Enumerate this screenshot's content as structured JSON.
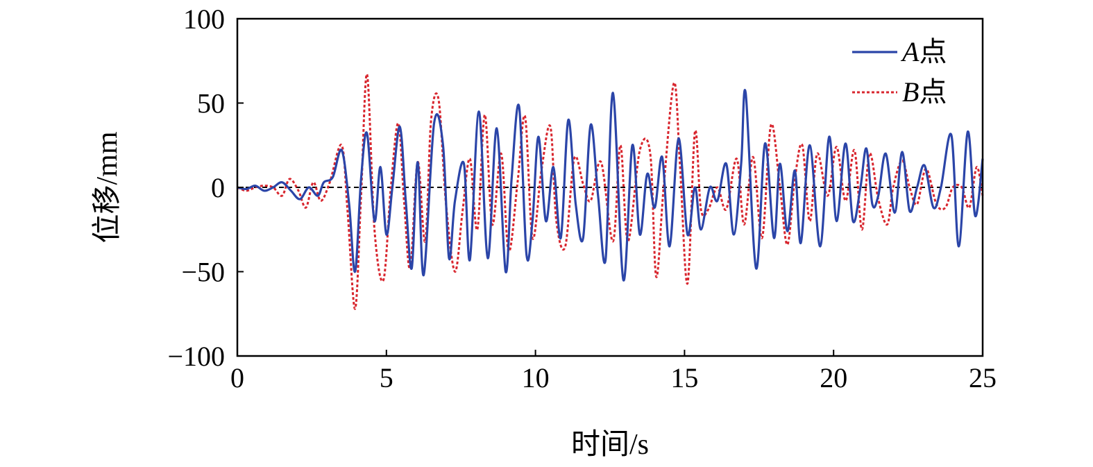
{
  "chart_data": {
    "type": "line",
    "title": "",
    "xlabel": "时间/s",
    "ylabel": "位移/mm",
    "xlim": [
      0,
      25
    ],
    "ylim": [
      -100,
      100
    ],
    "xticks": [
      0,
      5,
      10,
      15,
      20,
      25
    ],
    "xtick_labels": [
      "0",
      "5",
      "10",
      "15",
      "20",
      "25"
    ],
    "yticks": [
      -100,
      -50,
      0,
      50,
      100
    ],
    "ytick_labels": [
      "−100",
      "−50",
      "0",
      "50",
      "100"
    ],
    "grid": false,
    "legend_position": "top-right",
    "zero_line": {
      "y": 0,
      "color": "#000000",
      "style": "dashed"
    },
    "series": [
      {
        "name": "A点",
        "name_letter": "A",
        "name_suffix": "点",
        "color": "#2b45a8",
        "style": "solid",
        "x": [
          0,
          0.3,
          0.6,
          0.9,
          1.2,
          1.5,
          1.8,
          2.1,
          2.4,
          2.7,
          2.9,
          3.2,
          3.5,
          3.75,
          3.95,
          4.15,
          4.35,
          4.6,
          4.8,
          5.0,
          5.2,
          5.45,
          5.65,
          5.85,
          6.05,
          6.25,
          6.6,
          6.9,
          7.1,
          7.3,
          7.6,
          7.8,
          8.1,
          8.4,
          8.7,
          9.0,
          9.2,
          9.45,
          9.7,
          9.9,
          10.1,
          10.35,
          10.6,
          10.85,
          11.1,
          11.35,
          11.6,
          11.85,
          12.1,
          12.35,
          12.6,
          12.95,
          13.25,
          13.5,
          13.75,
          14.0,
          14.25,
          14.5,
          14.8,
          15.1,
          15.35,
          15.55,
          15.85,
          16.1,
          16.4,
          16.65,
          16.9,
          17.05,
          17.4,
          17.7,
          18.0,
          18.2,
          18.45,
          18.7,
          18.9,
          19.2,
          19.55,
          19.85,
          20.1,
          20.4,
          20.65,
          20.9,
          21.1,
          21.3,
          21.5,
          21.75,
          22.05,
          22.3,
          22.55,
          22.8,
          23.05,
          23.35,
          23.6,
          23.95,
          24.2,
          24.5,
          24.75,
          25.0
        ],
        "values": [
          0,
          -1,
          1,
          -2,
          0,
          3,
          -2,
          -7,
          0,
          -5,
          3,
          6,
          22,
          -10,
          -50,
          5,
          32,
          -20,
          12,
          -28,
          0,
          36,
          -8,
          -48,
          15,
          -52,
          38,
          25,
          -42,
          -8,
          14,
          -43,
          45,
          -42,
          35,
          -50,
          5,
          48,
          -40,
          -20,
          30,
          -20,
          12,
          -30,
          40,
          -10,
          -30,
          37,
          -5,
          -43,
          56,
          -55,
          25,
          -28,
          8,
          -12,
          18,
          -35,
          29,
          -28,
          0,
          -25,
          0,
          -8,
          14,
          -28,
          14,
          56,
          -48,
          26,
          -30,
          14,
          -26,
          10,
          -33,
          25,
          -35,
          30,
          -20,
          26,
          -20,
          0,
          23,
          -10,
          -5,
          20,
          -15,
          21,
          -14,
          0,
          13,
          -12,
          0,
          31,
          -35,
          33,
          -17,
          17
        ]
      },
      {
        "name": "B点",
        "name_letter": "B",
        "name_suffix": "点",
        "color": "#d8262e",
        "style": "dotted",
        "x": [
          0,
          0.3,
          0.6,
          0.9,
          1.2,
          1.5,
          1.75,
          2.05,
          2.3,
          2.55,
          2.8,
          3.1,
          3.5,
          3.7,
          3.95,
          4.15,
          4.35,
          4.6,
          4.9,
          5.15,
          5.4,
          5.6,
          5.8,
          6.05,
          6.3,
          6.5,
          6.75,
          7.0,
          7.3,
          7.55,
          7.8,
          8.05,
          8.3,
          8.55,
          8.85,
          9.1,
          9.4,
          9.65,
          9.9,
          10.2,
          10.5,
          10.7,
          11.0,
          11.3,
          11.6,
          11.85,
          12.2,
          12.6,
          12.85,
          13.1,
          13.5,
          13.85,
          14.05,
          14.3,
          14.65,
          14.85,
          15.1,
          15.35,
          15.55,
          15.8,
          16.1,
          16.4,
          16.75,
          17.0,
          17.3,
          17.6,
          17.9,
          18.2,
          18.45,
          18.7,
          18.95,
          19.2,
          19.45,
          19.8,
          20.1,
          20.4,
          20.7,
          20.95,
          21.2,
          21.5,
          21.8,
          22.0,
          22.3,
          22.55,
          22.8,
          23.1,
          23.45,
          23.75,
          24.0,
          24.3,
          24.55,
          24.8,
          25.0
        ],
        "values": [
          0,
          -2,
          0,
          1,
          0,
          -5,
          5,
          -2,
          -12,
          3,
          -8,
          3,
          25,
          -15,
          -72,
          -5,
          67,
          -25,
          -55,
          0,
          38,
          -10,
          -48,
          15,
          -32,
          40,
          52,
          -10,
          -50,
          -15,
          17,
          -25,
          43,
          -22,
          20,
          -38,
          3,
          42,
          -30,
          10,
          36,
          -20,
          -35,
          17,
          2,
          -8,
          15,
          -32,
          25,
          -32,
          22,
          20,
          -53,
          0,
          62,
          12,
          -57,
          33,
          -13,
          -13,
          0,
          -13,
          17,
          -22,
          18,
          -30,
          37,
          0,
          -34,
          5,
          25,
          -20,
          20,
          -5,
          24,
          -8,
          22,
          -25,
          20,
          -7,
          -22,
          0,
          16,
          0,
          -10,
          11,
          -10,
          -12,
          0,
          0,
          -12,
          12,
          -5
        ]
      }
    ]
  }
}
